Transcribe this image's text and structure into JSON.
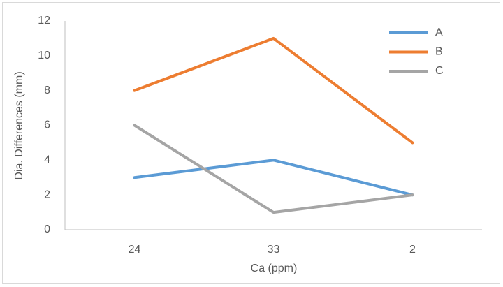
{
  "chart_data": {
    "type": "line",
    "x_label": "Ca (ppm)",
    "y_label": "Dia. Differences (mm)",
    "categories": [
      "24",
      "33",
      "2"
    ],
    "series": [
      {
        "name": "A",
        "color": "#5b9bd5",
        "values": [
          3,
          4,
          2
        ]
      },
      {
        "name": "B",
        "color": "#ed7d31",
        "values": [
          8,
          11,
          5
        ]
      },
      {
        "name": "C",
        "color": "#a5a5a5",
        "values": [
          6,
          1,
          2
        ]
      }
    ],
    "ylim": [
      0,
      12
    ],
    "yticks": [
      0,
      2,
      4,
      6,
      8,
      10,
      12
    ],
    "grid": false,
    "legend": "upper right"
  }
}
